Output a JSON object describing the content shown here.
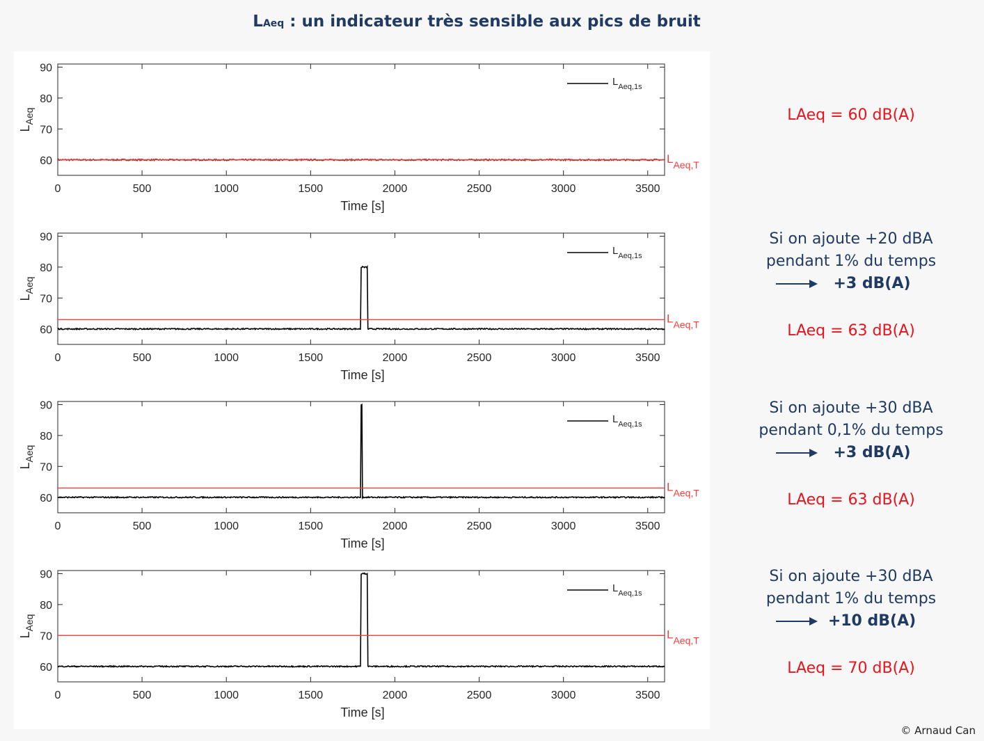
{
  "title": {
    "main": "L",
    "sub": "Aeq",
    "rest": " : un indicateur très sensible aux pics de bruit"
  },
  "credit": "© Arnaud Can",
  "colors": {
    "series": "#000000",
    "reference": "#ff3b3b",
    "annotation": "#1f3a63",
    "result": "#e8141b"
  },
  "annotations": [
    {
      "result": "LAeq = 60 dB(A)"
    },
    {
      "line1": "Si on ajoute +20 dBA",
      "line2": "pendant 1% du temps",
      "delta": "+3 dB(A)",
      "result": "LAeq = 63 dB(A)"
    },
    {
      "line1": "Si on ajoute +30 dBA",
      "line2": "pendant 0,1% du temps",
      "delta": "+3 dB(A)",
      "result": "LAeq = 63 dB(A)"
    },
    {
      "line1": "Si on ajoute +30 dBA",
      "line2": "pendant 1% du temps",
      "delta": "+10 dB(A)",
      "result": "LAeq = 70 dB(A)"
    }
  ],
  "chart_data": [
    {
      "type": "line",
      "xlabel": "Time [s]",
      "ylabel": "L",
      "ylabel_sub": "Aeq",
      "xlim": [
        0,
        3600
      ],
      "ylim": [
        55,
        91
      ],
      "xticks": [
        0,
        500,
        1000,
        1500,
        2000,
        2500,
        3000,
        3500
      ],
      "yticks": [
        60,
        70,
        80,
        90
      ],
      "legend": {
        "label": "L",
        "sub": "Aeq,1s",
        "position": "top-right"
      },
      "series": [
        {
          "name": "LAeq,1s",
          "baseline": 60,
          "peak_level": null,
          "peak_start": null,
          "peak_end": null,
          "noise": 0.2
        }
      ],
      "reference": {
        "label": "L",
        "sub": "Aeq,T",
        "value": 60
      }
    },
    {
      "type": "line",
      "xlabel": "Time [s]",
      "ylabel": "L",
      "ylabel_sub": "Aeq",
      "xlim": [
        0,
        3600
      ],
      "ylim": [
        55,
        91
      ],
      "xticks": [
        0,
        500,
        1000,
        1500,
        2000,
        2500,
        3000,
        3500
      ],
      "yticks": [
        60,
        70,
        80,
        90
      ],
      "legend": {
        "label": "L",
        "sub": "Aeq,1s",
        "position": "top-right"
      },
      "series": [
        {
          "name": "LAeq,1s",
          "baseline": 60,
          "peak_level": 80,
          "peak_start": 1800,
          "peak_end": 1836,
          "noise": 0.2
        }
      ],
      "reference": {
        "label": "L",
        "sub": "Aeq,T",
        "value": 63
      }
    },
    {
      "type": "line",
      "xlabel": "Time [s]",
      "ylabel": "L",
      "ylabel_sub": "Aeq",
      "xlim": [
        0,
        3600
      ],
      "ylim": [
        55,
        91
      ],
      "xticks": [
        0,
        500,
        1000,
        1500,
        2000,
        2500,
        3000,
        3500
      ],
      "yticks": [
        60,
        70,
        80,
        90
      ],
      "legend": {
        "label": "L",
        "sub": "Aeq,1s",
        "position": "top-right"
      },
      "series": [
        {
          "name": "LAeq,1s",
          "baseline": 60,
          "peak_level": 90,
          "peak_start": 1800,
          "peak_end": 1804,
          "noise": 0.2
        }
      ],
      "reference": {
        "label": "L",
        "sub": "Aeq,T",
        "value": 63
      }
    },
    {
      "type": "line",
      "xlabel": "Time [s]",
      "ylabel": "L",
      "ylabel_sub": "Aeq",
      "xlim": [
        0,
        3600
      ],
      "ylim": [
        55,
        91
      ],
      "xticks": [
        0,
        500,
        1000,
        1500,
        2000,
        2500,
        3000,
        3500
      ],
      "yticks": [
        60,
        70,
        80,
        90
      ],
      "legend": {
        "label": "L",
        "sub": "Aeq,1s",
        "position": "top-right"
      },
      "series": [
        {
          "name": "LAeq,1s",
          "baseline": 60,
          "peak_level": 90,
          "peak_start": 1800,
          "peak_end": 1836,
          "noise": 0.2
        }
      ],
      "reference": {
        "label": "L",
        "sub": "Aeq,T",
        "value": 70
      }
    }
  ]
}
